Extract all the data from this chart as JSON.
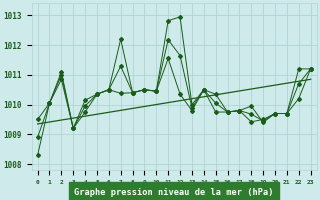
{
  "title": "Graphe pression niveau de la mer (hPa)",
  "ylim": [
    1007.8,
    1013.4
  ],
  "yticks": [
    1008,
    1009,
    1010,
    1011,
    1012,
    1013
  ],
  "xlim": [
    -0.5,
    23.5
  ],
  "line_color": "#1a5c1a",
  "bg_color": "#ceeaea",
  "grid_color": "#afd4d4",
  "title_bg": "#2e7d2e",
  "title_text_color": "#ffffff",
  "series1": [
    1008.3,
    1010.05,
    1011.1,
    1009.2,
    1009.75,
    1010.35,
    1010.5,
    1012.2,
    1010.4,
    1010.5,
    1010.45,
    1012.82,
    1012.95,
    1010.0,
    1010.5,
    1010.35,
    1009.75,
    1009.8,
    1009.95,
    1009.4,
    1009.7,
    1009.7,
    1011.2,
    1011.2
  ],
  "series2": [
    1009.5,
    1010.05,
    1010.85,
    1009.2,
    1010.15,
    1010.35,
    1010.5,
    1010.38,
    1010.4,
    1010.5,
    1010.45,
    1011.55,
    1010.35,
    1009.8,
    1010.5,
    1009.75,
    1009.75,
    1009.8,
    1009.42,
    1009.5,
    1009.7,
    1009.7,
    1010.2,
    1011.2
  ],
  "series3": [
    1008.9,
    1010.05,
    1011.0,
    1009.2,
    1009.95,
    1010.35,
    1010.5,
    1011.29,
    1010.4,
    1010.5,
    1010.45,
    1012.18,
    1011.65,
    1009.9,
    1010.5,
    1010.05,
    1009.75,
    1009.8,
    1009.68,
    1009.45,
    1009.7,
    1009.7,
    1010.7,
    1011.2
  ],
  "trend_x": [
    0,
    23
  ],
  "trend_y": [
    1009.35,
    1010.85
  ]
}
